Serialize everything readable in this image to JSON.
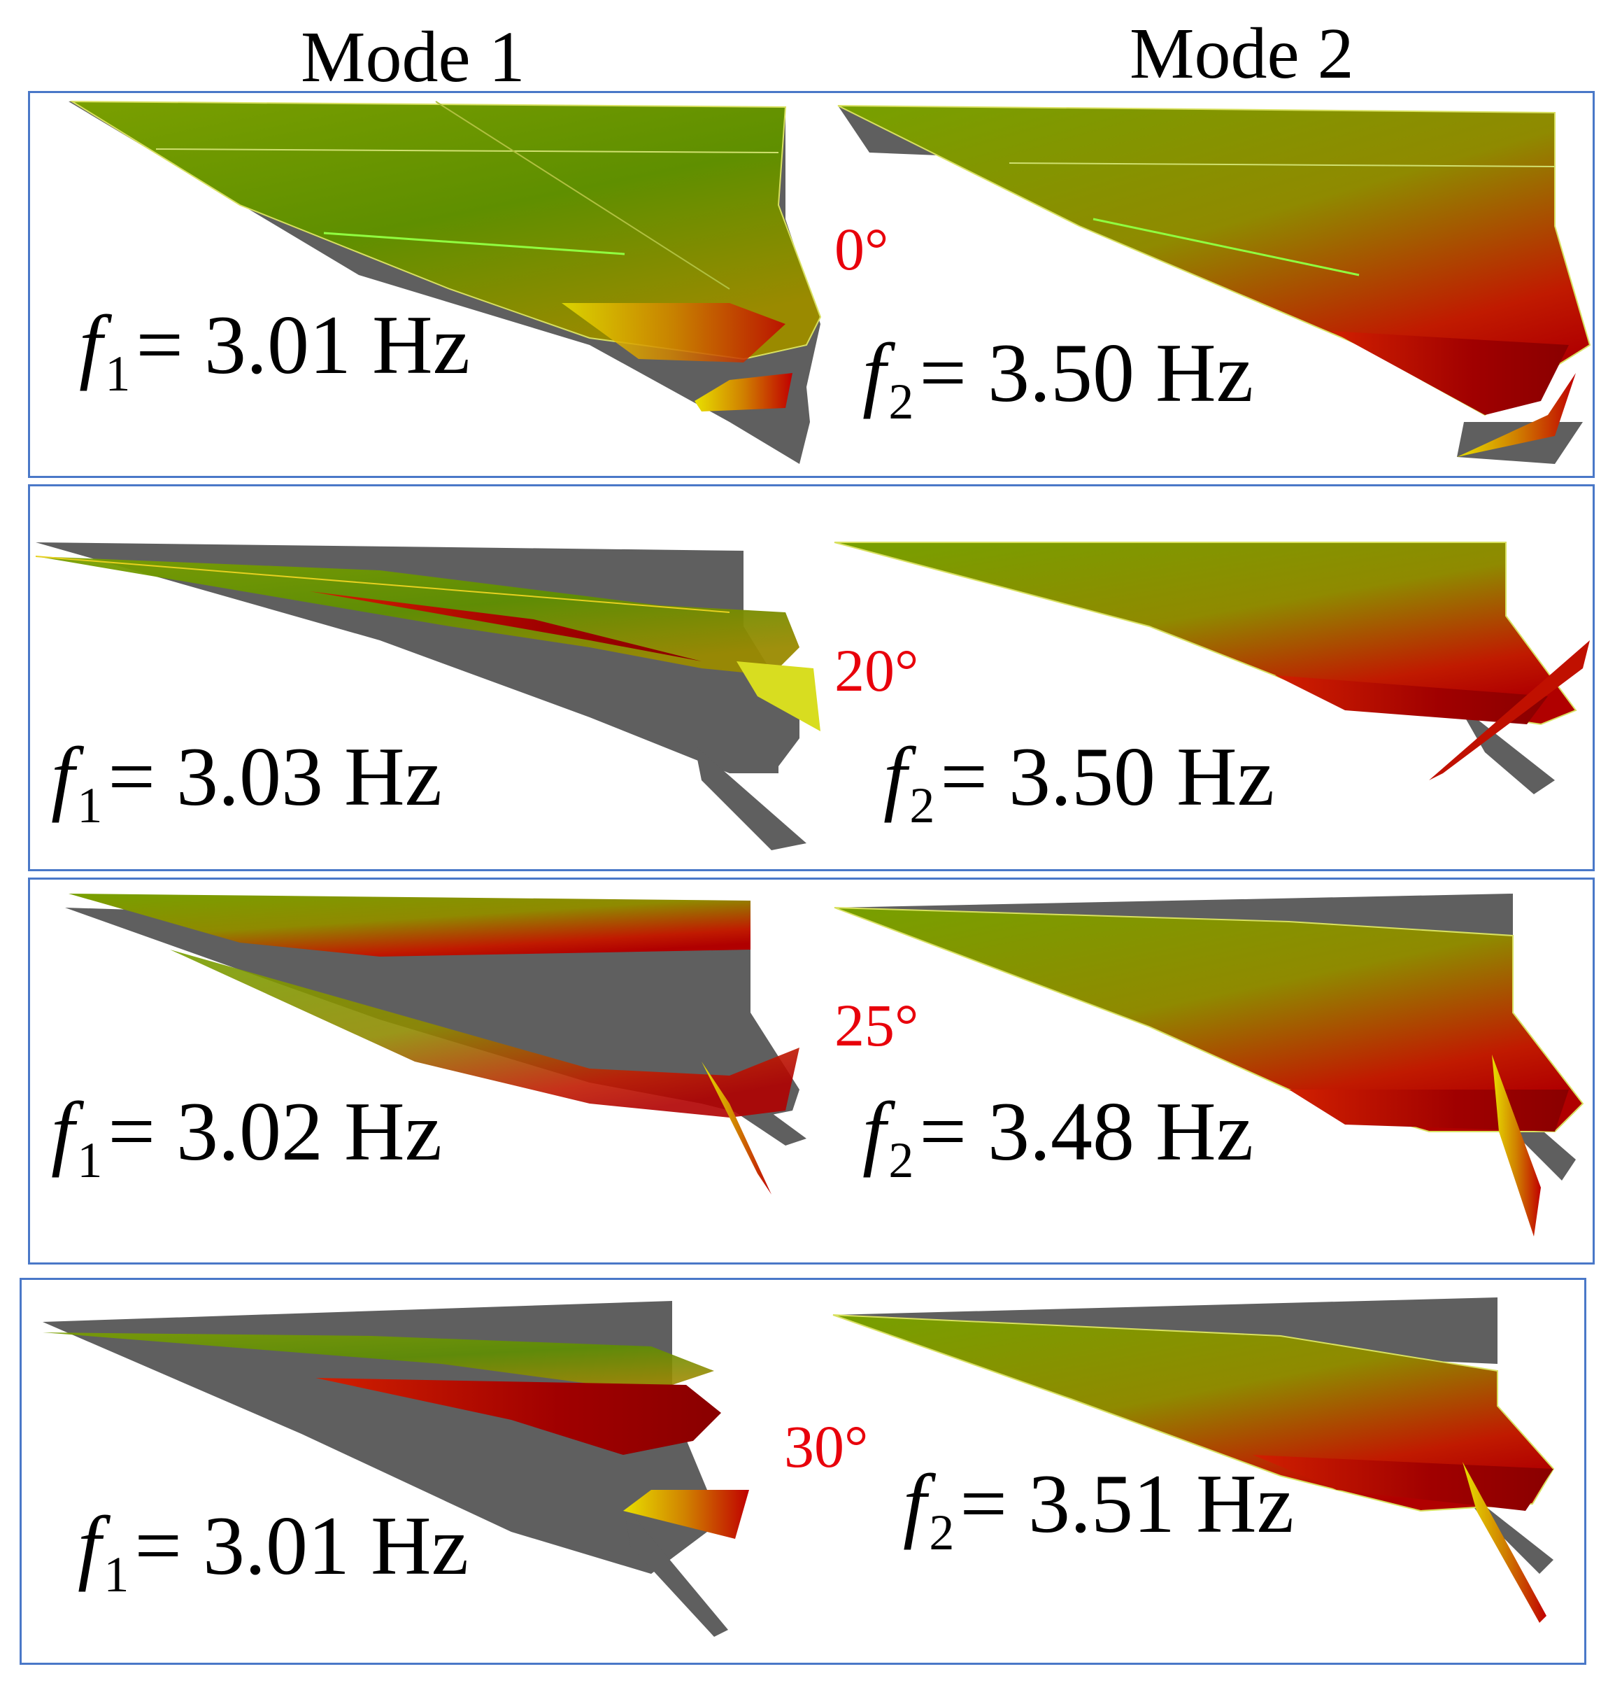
{
  "columns": {
    "mode1": "Mode 1",
    "mode2": "Mode 2"
  },
  "symbols": {
    "f": "f",
    "eq": "="
  },
  "rows": [
    {
      "angle": "0°",
      "mode1": {
        "sub": "1",
        "value": "3.01 Hz"
      },
      "mode2": {
        "sub": "2",
        "value": "3.50 Hz"
      }
    },
    {
      "angle": "20°",
      "mode1": {
        "sub": "1",
        "value": "3.03 Hz"
      },
      "mode2": {
        "sub": "2",
        "value": "3.50 Hz"
      }
    },
    {
      "angle": "25°",
      "mode1": {
        "sub": "1",
        "value": "3.02 Hz"
      },
      "mode2": {
        "sub": "2",
        "value": "3.48 Hz"
      }
    },
    {
      "angle": "30°",
      "mode1": {
        "sub": "1",
        "value": "3.01 Hz"
      },
      "mode2": {
        "sub": "2",
        "value": "3.51 Hz"
      }
    }
  ],
  "colors": {
    "border": "#4a78c8",
    "angle_text": "#e8000b",
    "undeformed": "#5f5f5f",
    "deformed_low": "#6f9a00",
    "deformed_mid": "#c7c000",
    "deformed_high": "#cc0000"
  }
}
